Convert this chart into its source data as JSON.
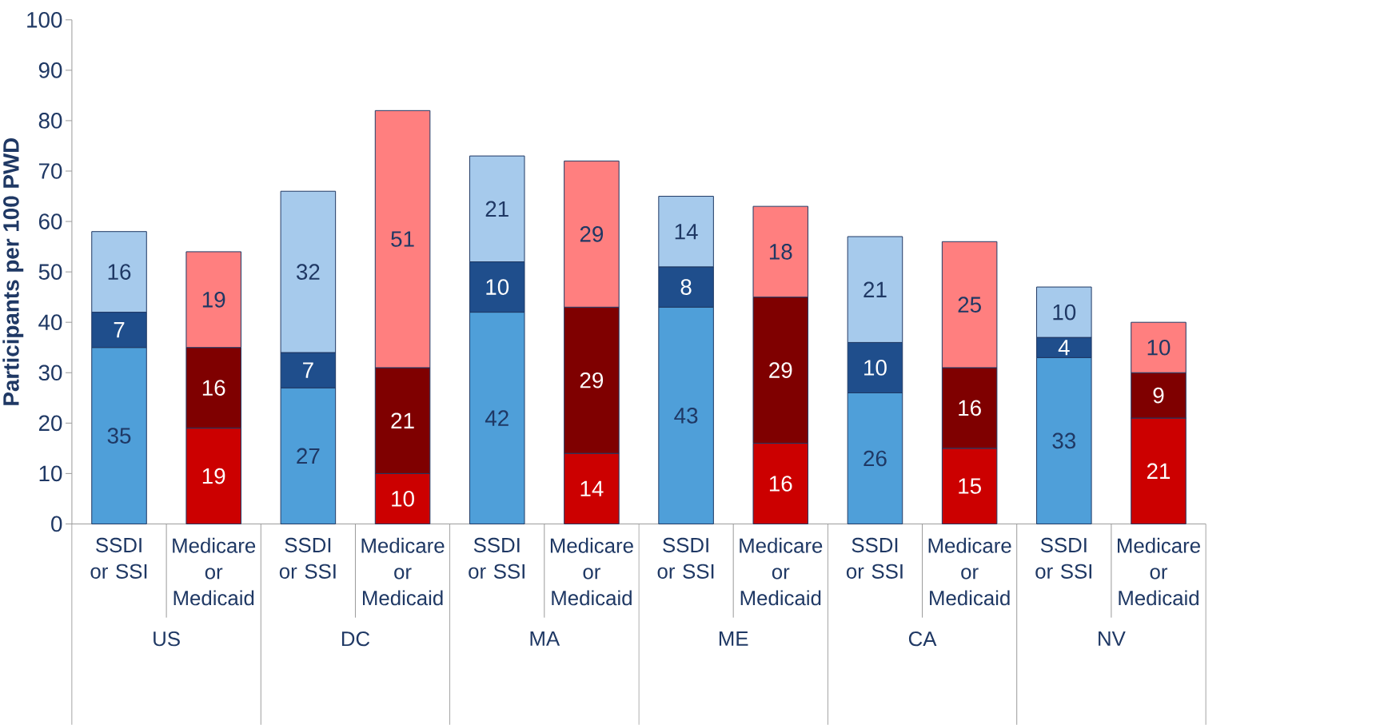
{
  "chart_data": {
    "type": "bar",
    "stacked": true,
    "ylabel": "Participants per 100 PWD",
    "categories": [
      "SSDI or SSI",
      "Medicare or Medicaid",
      "SSDI or SSI",
      "Medicare or Medicaid",
      "SSDI or SSI",
      "Medicare or Medicaid",
      "SSDI or SSI",
      "Medicare or Medicaid",
      "SSDI or SSI",
      "Medicare or Medicaid",
      "SSDI or SSI",
      "Medicare or Medicaid"
    ],
    "annotations": [
      "US",
      "DC",
      "MA",
      "ME",
      "CA",
      "NV"
    ],
    "series": [
      {
        "colors": [
          "#4f9fd9",
          "#cc0000",
          "#4f9fd9",
          "#cc0000",
          "#4f9fd9",
          "#cc0000",
          "#4f9fd9",
          "#cc0000",
          "#4f9fd9",
          "#cc0000",
          "#4f9fd9",
          "#cc0000"
        ],
        "values": [
          35,
          19,
          27,
          10,
          42,
          14,
          43,
          16,
          26,
          15,
          33,
          21
        ]
      },
      {
        "colors": [
          "#1f4e8c",
          "#7f0000",
          "#1f4e8c",
          "#7f0000",
          "#1f4e8c",
          "#7f0000",
          "#1f4e8c",
          "#7f0000",
          "#1f4e8c",
          "#7f0000",
          "#1f4e8c",
          "#7f0000"
        ],
        "values": [
          7,
          16,
          7,
          21,
          10,
          29,
          8,
          29,
          10,
          16,
          4,
          9
        ]
      },
      {
        "colors": [
          "#a6caec",
          "#ff7f7f",
          "#a6caec",
          "#ff7f7f",
          "#a6caec",
          "#ff7f7f",
          "#a6caec",
          "#ff7f7f",
          "#a6caec",
          "#ff7f7f",
          "#a6caec",
          "#ff7f7f"
        ],
        "values": [
          16,
          19,
          32,
          51,
          21,
          29,
          14,
          18,
          21,
          25,
          10,
          10
        ]
      }
    ],
    "data_labels": true,
    "ylim": [
      0,
      100
    ],
    "yticks": [
      0,
      10,
      20,
      30,
      40,
      50,
      60,
      70,
      80,
      90,
      100
    ]
  }
}
